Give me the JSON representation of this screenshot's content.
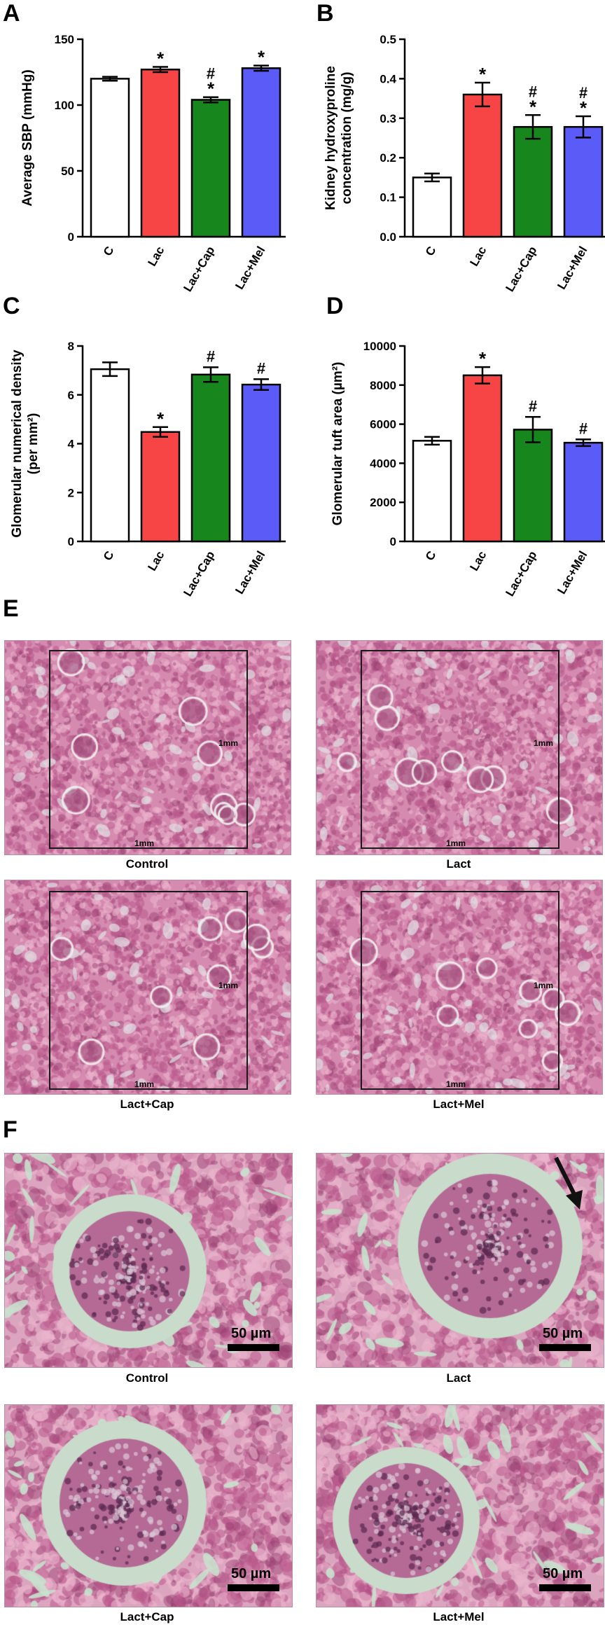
{
  "figure": {
    "panels": {
      "a": "A",
      "b": "B",
      "c": "C",
      "d": "D",
      "e": "E",
      "f": "F"
    }
  },
  "chart_data": [
    {
      "panel": "A",
      "type": "bar",
      "categories": [
        "C",
        "Lac",
        "Lac+Cap",
        "Lac+Mel"
      ],
      "values": [
        120,
        127,
        104,
        128
      ],
      "errors": [
        1.5,
        2,
        2,
        2
      ],
      "significance": [
        [
          "",
          ""
        ],
        [
          "*",
          ""
        ],
        [
          "#",
          "*"
        ],
        [
          "*",
          ""
        ]
      ],
      "colors": [
        "#ffffff",
        "#f74545",
        "#17861c",
        "#5b5bf7"
      ],
      "ylabel": "Average SBP (mmHg)",
      "ylim": [
        0,
        150
      ],
      "yticks": [
        0,
        50,
        100,
        150
      ]
    },
    {
      "panel": "B",
      "type": "bar",
      "categories": [
        "C",
        "Lac",
        "Lac+Cap",
        "Lac+Mel"
      ],
      "values": [
        0.15,
        0.36,
        0.278,
        0.278
      ],
      "errors": [
        0.01,
        0.03,
        0.03,
        0.027
      ],
      "significance": [
        [
          "",
          ""
        ],
        [
          "*",
          ""
        ],
        [
          "#",
          "*"
        ],
        [
          "#",
          "*"
        ]
      ],
      "colors": [
        "#ffffff",
        "#f74545",
        "#17861c",
        "#5b5bf7"
      ],
      "ylabel_lines": [
        "Kidney hydroxyproline",
        "concentration (mg/g)"
      ],
      "ylim": [
        0,
        0.5
      ],
      "yticks": [
        "0.0",
        "0.1",
        "0.2",
        "0.3",
        "0.4",
        "0.5"
      ]
    },
    {
      "panel": "C",
      "type": "bar",
      "categories": [
        "C",
        "Lac",
        "Lac+Cap",
        "Lac+Mel"
      ],
      "values": [
        7.05,
        4.48,
        6.83,
        6.42
      ],
      "errors": [
        0.28,
        0.2,
        0.3,
        0.22
      ],
      "significance": [
        [
          "",
          ""
        ],
        [
          "*",
          ""
        ],
        [
          "#",
          ""
        ],
        [
          "#",
          ""
        ]
      ],
      "colors": [
        "#ffffff",
        "#f74545",
        "#17861c",
        "#5b5bf7"
      ],
      "ylabel_lines": [
        "Glomerular numerical density",
        "(per mm²)"
      ],
      "ylim": [
        0,
        8
      ],
      "yticks": [
        0,
        2,
        4,
        6,
        8
      ]
    },
    {
      "panel": "D",
      "type": "bar",
      "categories": [
        "C",
        "Lac",
        "Lac+Cap",
        "Lac+Mel"
      ],
      "values": [
        5150,
        8500,
        5720,
        5050
      ],
      "errors": [
        200,
        420,
        650,
        170
      ],
      "significance": [
        [
          "",
          ""
        ],
        [
          "*",
          ""
        ],
        [
          "#",
          ""
        ],
        [
          "#",
          ""
        ]
      ],
      "colors": [
        "#ffffff",
        "#f74545",
        "#17861c",
        "#5b5bf7"
      ],
      "ylabel": "Glomerular tuft area (µm²)",
      "ylim": [
        0,
        10000
      ],
      "yticks": [
        0,
        2000,
        4000,
        6000,
        8000,
        10000
      ]
    }
  ],
  "histology_e": {
    "scale_label": "1mm",
    "captions": [
      "Control",
      "Lact",
      "Lact+Cap",
      "Lact+Mel"
    ]
  },
  "histology_f": {
    "scale_label": "50 µm",
    "captions": [
      "Control",
      "Lact",
      "Lact+Cap",
      "Lact+Mel"
    ]
  },
  "colors": {
    "tissue_low": "#c86f98",
    "tissue_high": "#e2b3c9",
    "space": "#c9dccb"
  }
}
